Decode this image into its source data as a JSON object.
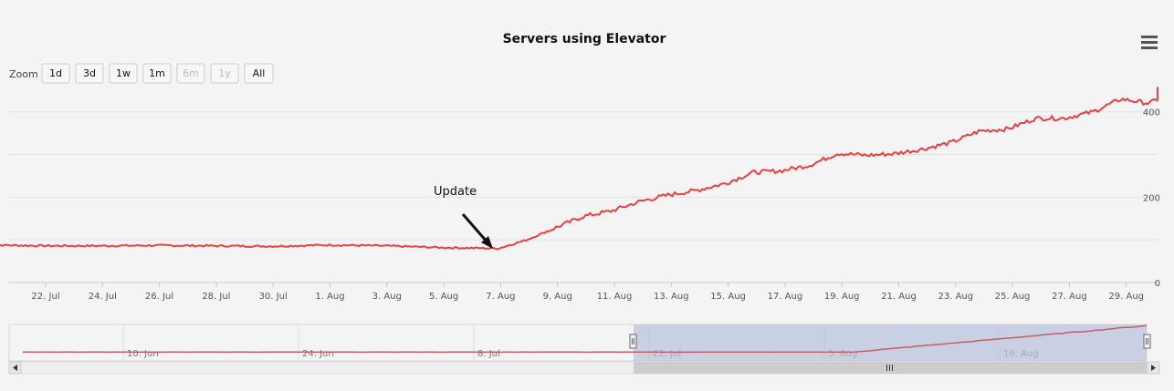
{
  "chart_data": {
    "type": "line",
    "title": "Servers using Elevator",
    "xlabel": "",
    "ylabel": "",
    "ylim": [
      0,
      440
    ],
    "yticks": [
      0,
      200,
      400
    ],
    "xticks": [
      "22. Jul",
      "24. Jul",
      "26. Jul",
      "28. Jul",
      "30. Jul",
      "1. Aug",
      "3. Aug",
      "5. Aug",
      "7. Aug",
      "9. Aug",
      "11. Aug",
      "13. Aug",
      "15. Aug",
      "17. Aug",
      "19. Aug",
      "21. Aug",
      "23. Aug",
      "25. Aug",
      "27. Aug",
      "29. Aug"
    ],
    "grid": true,
    "legend": "none",
    "color": "#e8413f",
    "annotation": {
      "text": "Update",
      "date": "2013-08-07"
    },
    "series": [
      {
        "x": [
          "2013-07-20",
          "2013-07-22",
          "2013-07-24",
          "2013-07-26",
          "2013-07-28",
          "2013-07-30",
          "2013-08-01",
          "2013-08-03",
          "2013-08-05",
          "2013-08-07",
          "2013-08-08",
          "2013-08-09",
          "2013-08-10",
          "2013-08-11",
          "2013-08-12",
          "2013-08-13",
          "2013-08-14",
          "2013-08-15",
          "2013-08-16",
          "2013-08-17",
          "2013-08-18",
          "2013-08-19",
          "2013-08-20",
          "2013-08-21",
          "2013-08-22",
          "2013-08-23",
          "2013-08-24",
          "2013-08-25",
          "2013-08-26",
          "2013-08-27",
          "2013-08-28",
          "2013-08-29",
          "2013-08-30",
          "2013-08-31"
        ],
        "values": [
          88,
          86,
          86,
          87,
          86,
          85,
          88,
          86,
          82,
          80,
          100,
          128,
          155,
          168,
          190,
          205,
          216,
          232,
          258,
          262,
          275,
          303,
          298,
          302,
          313,
          328,
          355,
          360,
          385,
          385,
          400,
          430,
          420,
          455
        ]
      }
    ]
  },
  "zoom": {
    "label": "Zoom",
    "buttons": [
      {
        "label": "1d",
        "enabled": true
      },
      {
        "label": "3d",
        "enabled": true
      },
      {
        "label": "1w",
        "enabled": true
      },
      {
        "label": "1m",
        "enabled": true
      },
      {
        "label": "6m",
        "enabled": false
      },
      {
        "label": "1y",
        "enabled": false
      },
      {
        "label": "All",
        "enabled": true
      }
    ]
  },
  "menu_icon": "hamburger-menu-icon",
  "navigator": {
    "labels": [
      "10. Jun",
      "24. Jun",
      "8. Jul",
      "22. Jul",
      "5. Aug",
      "19. Aug"
    ],
    "scrollbar_grip_icon": "grip-icon",
    "left_arrow_icon": "scroll-left-icon",
    "right_arrow_icon": "scroll-right-icon"
  }
}
